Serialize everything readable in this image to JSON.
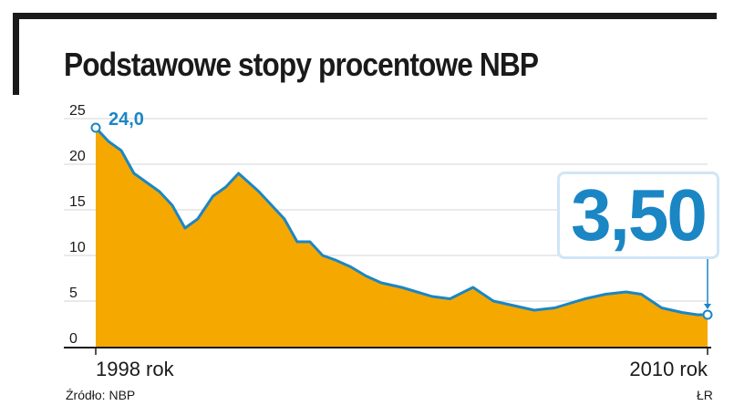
{
  "title": "Podstawowe stopy procentowe NBP",
  "source": "Źródło: NBP",
  "author": "ŁR",
  "colors": {
    "area": "#f5a800",
    "line": "#1b86c4",
    "grid": "#d4d4d4",
    "axis": "#1a1a1a"
  },
  "chart_data": {
    "type": "area",
    "title": "Podstawowe stopy procentowe NBP",
    "xlabel": "",
    "ylabel": "",
    "ylim": [
      0,
      25
    ],
    "yticks": [
      "0",
      "5",
      "10",
      "15",
      "20",
      "25"
    ],
    "xticks": [
      "1998 rok",
      "2010 rok"
    ],
    "grid": true,
    "start_label": "24,0",
    "end_label": "3,50",
    "x": [
      1998.0,
      1998.25,
      1998.5,
      1998.75,
      1999.0,
      1999.25,
      1999.5,
      1999.75,
      2000.0,
      2000.3,
      2000.55,
      2000.8,
      2001.0,
      2001.2,
      2001.45,
      2001.7,
      2001.95,
      2002.2,
      2002.45,
      2002.7,
      2003.0,
      2003.3,
      2003.6,
      2004.0,
      2004.3,
      2004.6,
      2004.95,
      2005.4,
      2005.8,
      2006.2,
      2006.6,
      2007.0,
      2007.3,
      2007.6,
      2008.0,
      2008.4,
      2008.7,
      2009.1,
      2009.5,
      2009.8,
      2010.0
    ],
    "values": [
      24.0,
      22.5,
      21.5,
      19.0,
      18.0,
      17.0,
      15.5,
      13.0,
      14.0,
      16.5,
      17.5,
      19.0,
      18.0,
      17.0,
      15.5,
      14.0,
      11.5,
      11.5,
      10.0,
      9.5,
      8.75,
      7.75,
      7.0,
      6.5,
      6.0,
      5.5,
      5.25,
      6.5,
      5.0,
      4.5,
      4.0,
      4.25,
      4.75,
      5.25,
      5.75,
      6.0,
      5.75,
      4.25,
      3.75,
      3.5,
      3.5
    ]
  }
}
